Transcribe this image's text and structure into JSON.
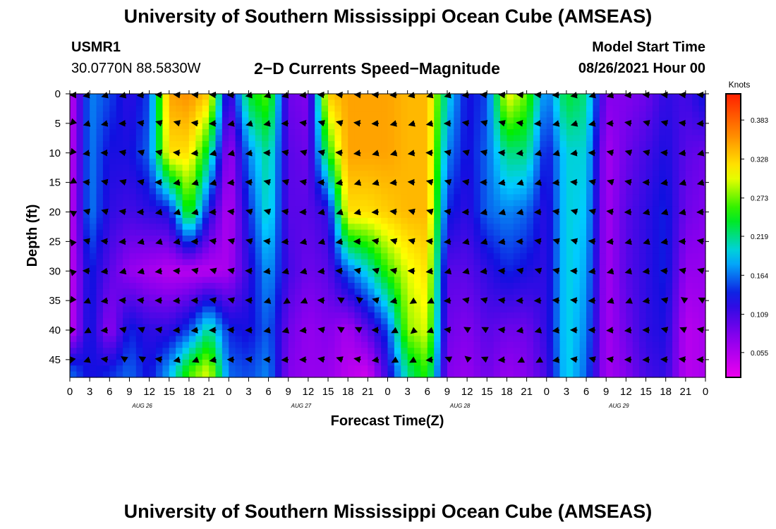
{
  "page": {
    "title_top": "University of Southern Mississippi Ocean Cube (AMSEAS)",
    "title_bottom": "University of Southern Mississippi Ocean Cube (AMSEAS)",
    "station": "USMR1",
    "coords": "30.0770N  88.5830W",
    "plot_title": "2−D Currents Speed−Magnitude",
    "model_start_label": "Model Start Time",
    "model_start_value": "08/26/2021 Hour 00"
  },
  "colors": {
    "scale": [
      "#ee00ee",
      "#8800ee",
      "#1010e0",
      "#00ccff",
      "#00ee00",
      "#ffff00",
      "#ff8800",
      "#ff2000"
    ]
  },
  "chart_data": {
    "type": "heatmap",
    "title": "2−D Currents Speed−Magnitude",
    "xlabel": "Forecast Time(Z)",
    "ylabel": "Depth (ft)",
    "colorbar_label": "Knots",
    "colorbar_ticks": [
      "0.383",
      "0.328",
      "0.273",
      "0.219",
      "0.164",
      "0.109",
      "0.055"
    ],
    "colorbar_tick_values": [
      0.383,
      0.328,
      0.273,
      0.219,
      0.164,
      0.109,
      0.055
    ],
    "colorbar_range": [
      0.02,
      0.42
    ],
    "x_ticks": [
      "0",
      "3",
      "6",
      "9",
      "12",
      "15",
      "18",
      "21",
      "0",
      "3",
      "6",
      "9",
      "12",
      "15",
      "18",
      "21",
      "0",
      "3",
      "6",
      "9",
      "12",
      "15",
      "18",
      "21",
      "0",
      "3",
      "6",
      "9",
      "12",
      "15",
      "18",
      "21",
      "0"
    ],
    "x_range_hours": [
      0,
      96
    ],
    "date_labels": [
      {
        "label": "AUG 26",
        "hour": 12
      },
      {
        "label": "AUG 27",
        "hour": 36
      },
      {
        "label": "AUG 28",
        "hour": 60
      },
      {
        "label": "AUG 29",
        "hour": 84
      }
    ],
    "y_ticks": [
      "0",
      "5",
      "10",
      "15",
      "20",
      "25",
      "30",
      "35",
      "40",
      "45"
    ],
    "y_tick_values": [
      0,
      5,
      10,
      15,
      20,
      25,
      30,
      35,
      40,
      45
    ],
    "ylim": [
      0,
      48
    ],
    "speed_grid": {
      "hours": [
        0,
        3,
        6,
        9,
        12,
        15,
        18,
        21,
        24,
        27,
        30,
        33,
        36,
        39,
        42,
        45,
        48,
        51,
        54,
        57,
        60,
        63,
        66,
        69,
        72,
        75,
        78,
        81,
        84,
        87,
        90,
        93,
        96
      ],
      "depths": [
        0,
        10,
        20,
        30,
        40,
        47
      ],
      "knots": [
        [
          0.04,
          0.04,
          0.04,
          0.04,
          0.04,
          0.16
        ],
        [
          0.17,
          0.17,
          0.17,
          0.14,
          0.14,
          0.13
        ],
        [
          0.15,
          0.13,
          0.12,
          0.1,
          0.07,
          0.14
        ],
        [
          0.12,
          0.13,
          0.11,
          0.07,
          0.14,
          0.16
        ],
        [
          0.15,
          0.16,
          0.12,
          0.06,
          0.12,
          0.13
        ],
        [
          0.35,
          0.32,
          0.13,
          0.05,
          0.12,
          0.18
        ],
        [
          0.36,
          0.32,
          0.26,
          0.05,
          0.15,
          0.26
        ],
        [
          0.33,
          0.23,
          0.13,
          0.05,
          0.22,
          0.3
        ],
        [
          0.1,
          0.06,
          0.05,
          0.06,
          0.14,
          0.16
        ],
        [
          0.24,
          0.17,
          0.14,
          0.12,
          0.13,
          0.15
        ],
        [
          0.27,
          0.22,
          0.21,
          0.18,
          0.16,
          0.17
        ],
        [
          0.09,
          0.1,
          0.1,
          0.11,
          0.09,
          0.08
        ],
        [
          0.08,
          0.09,
          0.1,
          0.09,
          0.07,
          0.07
        ],
        [
          0.33,
          0.25,
          0.12,
          0.1,
          0.08,
          0.07
        ],
        [
          0.35,
          0.35,
          0.32,
          0.16,
          0.06,
          0.05
        ],
        [
          0.35,
          0.35,
          0.32,
          0.2,
          0.1,
          0.04
        ],
        [
          0.35,
          0.35,
          0.33,
          0.26,
          0.15,
          0.12
        ],
        [
          0.34,
          0.34,
          0.34,
          0.3,
          0.28,
          0.22
        ],
        [
          0.34,
          0.34,
          0.34,
          0.32,
          0.3,
          0.26
        ],
        [
          0.2,
          0.17,
          0.14,
          0.1,
          0.09,
          0.08
        ],
        [
          0.13,
          0.13,
          0.12,
          0.1,
          0.08,
          0.07
        ],
        [
          0.15,
          0.16,
          0.16,
          0.12,
          0.1,
          0.09
        ],
        [
          0.31,
          0.22,
          0.17,
          0.14,
          0.09,
          0.07
        ],
        [
          0.27,
          0.22,
          0.16,
          0.13,
          0.09,
          0.08
        ],
        [
          0.16,
          0.13,
          0.12,
          0.12,
          0.12,
          0.11
        ],
        [
          0.24,
          0.2,
          0.2,
          0.2,
          0.2,
          0.2
        ],
        [
          0.22,
          0.2,
          0.19,
          0.18,
          0.17,
          0.16
        ],
        [
          0.08,
          0.06,
          0.06,
          0.06,
          0.06,
          0.06
        ],
        [
          0.08,
          0.09,
          0.1,
          0.1,
          0.09,
          0.08
        ],
        [
          0.09,
          0.11,
          0.12,
          0.12,
          0.12,
          0.11
        ],
        [
          0.12,
          0.13,
          0.14,
          0.14,
          0.13,
          0.12
        ],
        [
          0.11,
          0.1,
          0.09,
          0.07,
          0.05,
          0.05
        ],
        [
          0.14,
          0.09,
          0.08,
          0.07,
          0.06,
          0.06
        ]
      ]
    }
  }
}
